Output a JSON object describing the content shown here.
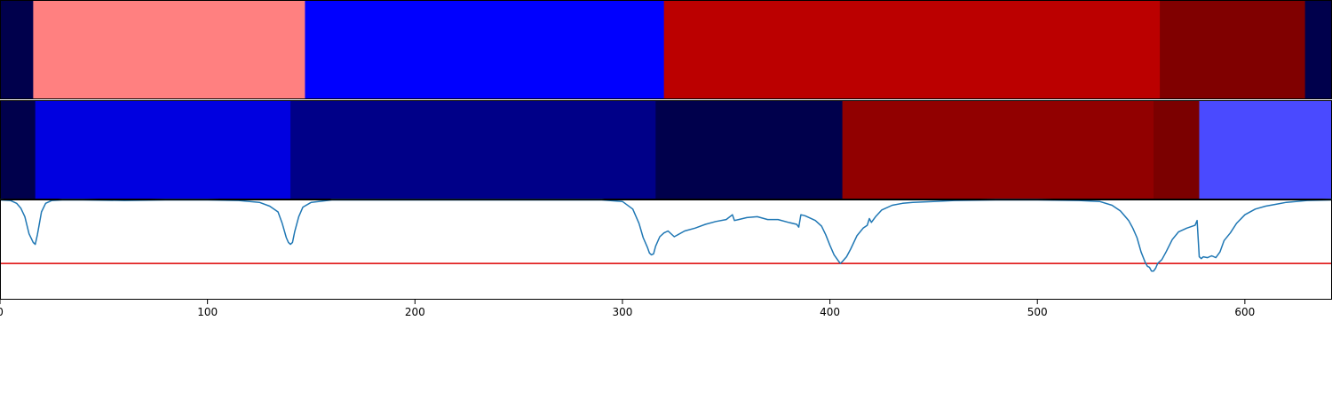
{
  "chart_data": [
    {
      "type": "heatmap",
      "segments": [
        {
          "start": 0,
          "end": 16,
          "color": "#00004c"
        },
        {
          "start": 16,
          "end": 147,
          "color": "#ff8080"
        },
        {
          "start": 147,
          "end": 320,
          "color": "#0000ff"
        },
        {
          "start": 320,
          "end": 559,
          "color": "#bb0000"
        },
        {
          "start": 559,
          "end": 629,
          "color": "#800000"
        },
        {
          "start": 629,
          "end": 642,
          "color": "#00004c"
        }
      ]
    },
    {
      "type": "heatmap",
      "segments": [
        {
          "start": 0,
          "end": 17,
          "color": "#00004c"
        },
        {
          "start": 17,
          "end": 140,
          "color": "#0000e0"
        },
        {
          "start": 140,
          "end": 316,
          "color": "#000088"
        },
        {
          "start": 316,
          "end": 406,
          "color": "#00004c"
        },
        {
          "start": 406,
          "end": 556,
          "color": "#910000"
        },
        {
          "start": 556,
          "end": 578,
          "color": "#7b0000"
        },
        {
          "start": 578,
          "end": 642,
          "color": "#4a4aff"
        }
      ]
    },
    {
      "type": "line",
      "xlim": [
        0,
        642
      ],
      "ylim": [
        -0.05,
        1.0
      ],
      "threshold": 0.33,
      "threshold_color": "#dd0000",
      "line_color": "#1f77b4",
      "xticks": [
        0,
        100,
        200,
        300,
        400,
        500,
        600
      ],
      "series": [
        {
          "x": [
            0,
            5,
            8,
            10,
            12,
            14,
            16,
            17,
            18,
            20,
            22,
            25,
            30,
            40,
            60,
            80,
            100,
            115,
            125,
            130,
            134,
            136,
            138,
            139,
            140,
            141,
            142,
            144,
            146,
            150,
            160,
            200,
            250,
            290,
            300,
            305,
            308,
            310,
            312,
            313,
            314,
            315,
            316,
            318,
            320,
            322,
            325,
            330,
            335,
            340,
            345,
            350,
            353,
            354,
            356,
            360,
            365,
            370,
            375,
            380,
            384,
            385,
            386,
            388,
            390,
            393,
            396,
            398,
            400,
            402,
            404,
            405,
            406,
            408,
            410,
            413,
            416,
            418,
            419,
            420,
            422,
            425,
            430,
            435,
            440,
            450,
            460,
            480,
            500,
            520,
            530,
            536,
            540,
            544,
            546,
            548,
            550,
            552,
            553,
            554,
            555,
            556,
            557,
            558,
            560,
            562,
            565,
            568,
            572,
            576,
            577,
            578,
            579,
            580,
            582,
            584,
            586,
            588,
            590,
            593,
            596,
            600,
            605,
            610,
            615,
            620,
            630,
            642
          ],
          "y": [
            0.995,
            0.99,
            0.96,
            0.91,
            0.82,
            0.64,
            0.55,
            0.53,
            0.63,
            0.87,
            0.96,
            0.99,
            0.995,
            0.995,
            0.99,
            0.995,
            0.995,
            0.99,
            0.97,
            0.93,
            0.87,
            0.75,
            0.6,
            0.55,
            0.53,
            0.55,
            0.66,
            0.82,
            0.92,
            0.97,
            0.995,
            0.995,
            0.995,
            0.995,
            0.98,
            0.9,
            0.75,
            0.6,
            0.5,
            0.44,
            0.42,
            0.43,
            0.51,
            0.61,
            0.65,
            0.67,
            0.61,
            0.67,
            0.7,
            0.74,
            0.77,
            0.79,
            0.84,
            0.78,
            0.79,
            0.81,
            0.82,
            0.79,
            0.79,
            0.76,
            0.74,
            0.71,
            0.84,
            0.83,
            0.81,
            0.78,
            0.72,
            0.63,
            0.52,
            0.42,
            0.36,
            0.33,
            0.35,
            0.4,
            0.48,
            0.62,
            0.7,
            0.73,
            0.8,
            0.76,
            0.82,
            0.89,
            0.94,
            0.96,
            0.97,
            0.98,
            0.99,
            0.995,
            0.995,
            0.99,
            0.98,
            0.94,
            0.88,
            0.78,
            0.7,
            0.6,
            0.45,
            0.34,
            0.3,
            0.29,
            0.25,
            0.25,
            0.28,
            0.33,
            0.37,
            0.45,
            0.58,
            0.66,
            0.7,
            0.73,
            0.78,
            0.4,
            0.38,
            0.4,
            0.39,
            0.41,
            0.39,
            0.45,
            0.57,
            0.65,
            0.75,
            0.84,
            0.9,
            0.93,
            0.95,
            0.97,
            0.99,
            0.995
          ]
        }
      ]
    }
  ]
}
